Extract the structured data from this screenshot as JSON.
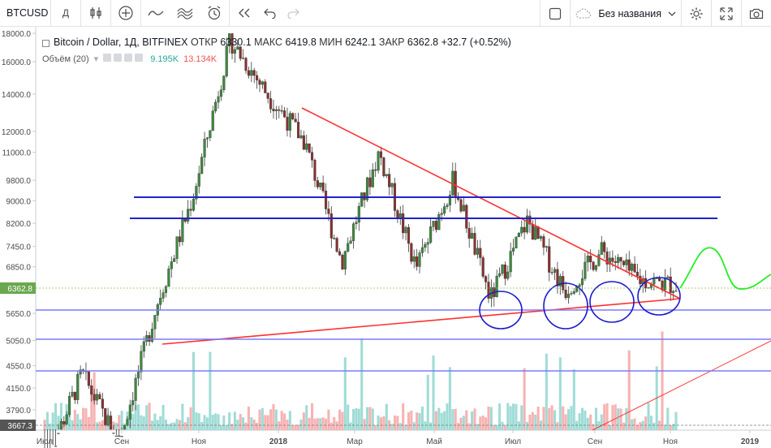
{
  "toolbar": {
    "symbol": "BTCUSD",
    "interval": "Д",
    "layout_name": "Без названия",
    "icons": [
      "plus-icon",
      "candles-icon",
      "add-indicator-icon",
      "line-icon",
      "compare-icon",
      "alert-icon",
      "replay-icon",
      "undo-icon",
      "redo-icon",
      "layout-square-icon",
      "cloud-icon",
      "chevron-down-icon",
      "gear-icon",
      "fullscreen-icon",
      "camera-icon"
    ]
  },
  "legend": {
    "title": "Bitcoin / Dollar, 1Д, BITFINEX",
    "open_label": "ОТКР",
    "open": "6330.1",
    "high_label": "МАКС",
    "high": "6419.8",
    "low_label": "МИН",
    "low": "6242.1",
    "close_label": "ЗАКР",
    "close": "6362.8",
    "change": "+32.7 (+0.52%)"
  },
  "volume_legend": {
    "label": "Объём (20)",
    "v1": "9.195K",
    "v2": "13.134K"
  },
  "colors": {
    "up": "#26a69a",
    "down": "#ef5350",
    "candle_body": "#3a3a3a",
    "trend_red": "#ff3030",
    "hline_blue": "#2222cc",
    "hline_light": "#7b7bff",
    "circle_blue": "#1a1acc",
    "forecast_green": "#22ee22"
  },
  "chart_data": {
    "type": "candlestick",
    "y_axis_labels": [
      "18000.0",
      "16000.0",
      "14000.0",
      "12000.0",
      "11000.0",
      "9800.0",
      "9000.0",
      "8200.0",
      "7450.0",
      "6850.0",
      "5650.0",
      "5050.0",
      "4550.0",
      "4150.0",
      "3790.0"
    ],
    "y_axis_scale": "log",
    "x_axis_labels": [
      "Июл",
      "Сен",
      "Ноя",
      "2018",
      "Мар",
      "Май",
      "Июл",
      "Сен",
      "Ноя",
      "2019"
    ],
    "price_label": "6362.8",
    "low_label": "3667.3",
    "price_points": [
      {
        "t": "Июл",
        "v": 3000
      },
      {
        "t": "Сен",
        "v": 4400
      },
      {
        "t": "Сен",
        "v": 3300
      },
      {
        "t": "Ноя",
        "v": 5800
      },
      {
        "t": "Ноя",
        "v": 9200
      },
      {
        "t": "Дек",
        "v": 17500
      },
      {
        "t": "2018",
        "v": 14000
      },
      {
        "t": "Янв",
        "v": 11500
      },
      {
        "t": "Фев",
        "v": 7000
      },
      {
        "t": "Мар",
        "v": 11000
      },
      {
        "t": "Апр",
        "v": 6800
      },
      {
        "t": "Май",
        "v": 9800
      },
      {
        "t": "Июн",
        "v": 6000
      },
      {
        "t": "Июл",
        "v": 8300
      },
      {
        "t": "Авг",
        "v": 6200
      },
      {
        "t": "Сен",
        "v": 7300
      },
      {
        "t": "Окт",
        "v": 6500
      },
      {
        "t": "Ноя",
        "v": 6360
      }
    ],
    "annotations": [
      {
        "type": "trendline",
        "desc": "descending resistance"
      },
      {
        "type": "trendline",
        "desc": "ascending support"
      },
      {
        "type": "hline",
        "value": 9000
      },
      {
        "type": "hline",
        "value": 8400
      },
      {
        "type": "hline",
        "value": 5800
      },
      {
        "type": "hline",
        "value": 5200
      },
      {
        "type": "hline",
        "value": 4600
      },
      {
        "type": "circle",
        "count": 4
      },
      {
        "type": "forecast-wave"
      }
    ]
  }
}
